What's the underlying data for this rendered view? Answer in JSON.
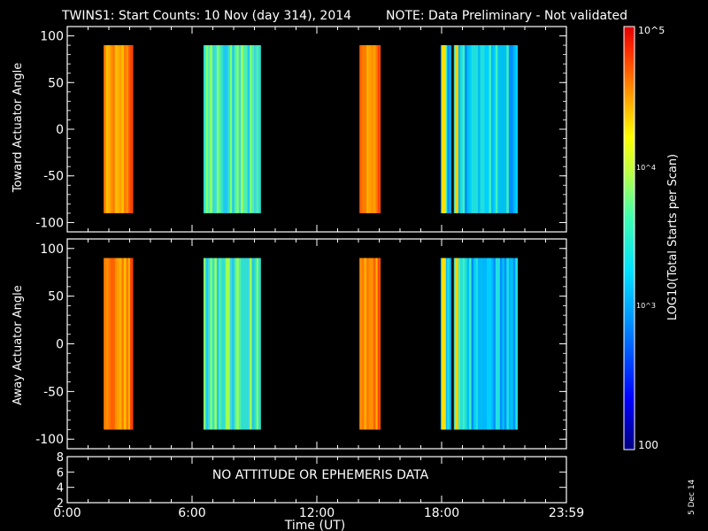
{
  "title": {
    "main": "TWINS1: Start Counts: 10 Nov (day 314), 2014",
    "note": "NOTE: Data Preliminary - Not validated",
    "note_color": "#ff2020"
  },
  "footer_date": "5 Dec 14",
  "chart_data": [
    {
      "type": "heatmap",
      "panel": "toward",
      "ylabel": "Toward Actuator Angle",
      "xlabel": "",
      "ylim": [
        -110,
        110
      ],
      "yticks": [
        -100,
        -50,
        0,
        50,
        100
      ],
      "xlim_hours": [
        0,
        24
      ],
      "segments": [
        {
          "start_hour": 1.75,
          "end_hour": 3.15,
          "level": "high"
        },
        {
          "start_hour": 6.55,
          "end_hour": 9.3,
          "level": "mid"
        },
        {
          "start_hour": 14.05,
          "end_hour": 15.05,
          "level": "high"
        },
        {
          "start_hour": 17.95,
          "end_hour": 21.65,
          "level": "low-mid"
        }
      ]
    },
    {
      "type": "heatmap",
      "panel": "away",
      "ylabel": "Away Actuator Angle",
      "xlabel": "",
      "ylim": [
        -110,
        110
      ],
      "yticks": [
        -100,
        -50,
        0,
        50,
        100
      ],
      "xlim_hours": [
        0,
        24
      ],
      "segments": [
        {
          "start_hour": 1.75,
          "end_hour": 3.15,
          "level": "high"
        },
        {
          "start_hour": 6.55,
          "end_hour": 9.3,
          "level": "mid"
        },
        {
          "start_hour": 14.05,
          "end_hour": 15.05,
          "level": "high"
        },
        {
          "start_hour": 17.95,
          "end_hour": 21.65,
          "level": "low-mid"
        }
      ]
    },
    {
      "type": "line",
      "panel": "attitude",
      "ylim": [
        2,
        8
      ],
      "yticks": [
        2,
        4,
        6,
        8
      ],
      "message": "NO ATTITUDE OR EPHEMERIS DATA",
      "xlabel": "Time (UT)",
      "xticks": [
        "0:00",
        "6:00",
        "12:00",
        "18:00",
        "23:59"
      ]
    }
  ],
  "colorbar": {
    "label": "LOG10(Total Starts per Scan)",
    "top_label": "10^5",
    "bottom_label": "100",
    "tick_3": "10^3",
    "tick_4": "10^4",
    "scale": "log",
    "range": [
      100,
      100000
    ]
  }
}
